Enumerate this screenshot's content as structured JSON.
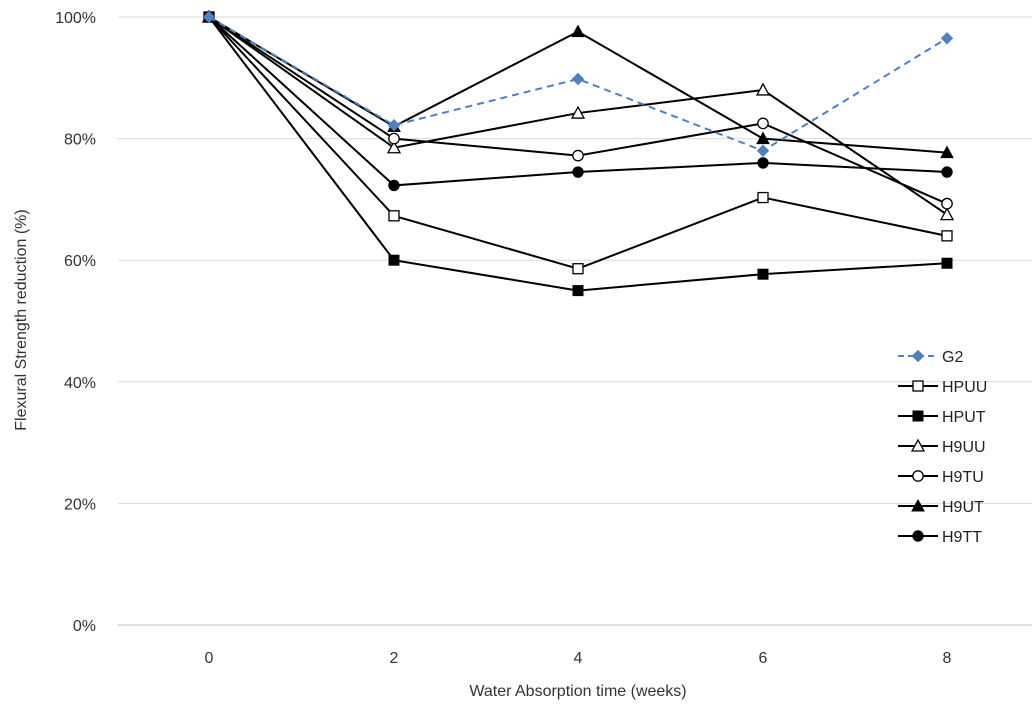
{
  "chart_data": {
    "type": "line",
    "xlabel": "Water Absorption time (weeks)",
    "ylabel": "Flexural Strength reduction (%)",
    "x": [
      0,
      2,
      4,
      6,
      8
    ],
    "x_tick_labels": [
      "0",
      "2",
      "4",
      "6",
      "8"
    ],
    "y_tick_labels": [
      "0%",
      "20%",
      "40%",
      "60%",
      "80%",
      "100%"
    ],
    "ylim": [
      0,
      100
    ],
    "grid": "horizontal",
    "legend_position": "right",
    "series": [
      {
        "name": "G2",
        "values": [
          100,
          82.2,
          89.8,
          78.0,
          96.5
        ],
        "marker": "diamond",
        "color": "#4f81bd",
        "dash": true
      },
      {
        "name": "HPUU",
        "values": [
          100,
          67.3,
          58.6,
          70.3,
          64.0
        ],
        "marker": "square-open",
        "color": "#000000",
        "dash": false
      },
      {
        "name": "HPUT",
        "values": [
          100,
          60.0,
          55.0,
          57.7,
          59.5
        ],
        "marker": "square-filled",
        "color": "#000000",
        "dash": false
      },
      {
        "name": "H9UU",
        "values": [
          100,
          78.5,
          84.2,
          88.0,
          67.5
        ],
        "marker": "triangle-open",
        "color": "#000000",
        "dash": false
      },
      {
        "name": "H9TU",
        "values": [
          100,
          80.0,
          77.2,
          82.5,
          69.3
        ],
        "marker": "circle-open",
        "color": "#000000",
        "dash": false
      },
      {
        "name": "H9UT",
        "values": [
          100,
          82.0,
          97.6,
          80.0,
          77.7
        ],
        "marker": "triangle-filled",
        "color": "#000000",
        "dash": false
      },
      {
        "name": "H9TT",
        "values": [
          100,
          72.3,
          74.5,
          76.0,
          74.5
        ],
        "marker": "circle-filled",
        "color": "#000000",
        "dash": false
      }
    ]
  }
}
